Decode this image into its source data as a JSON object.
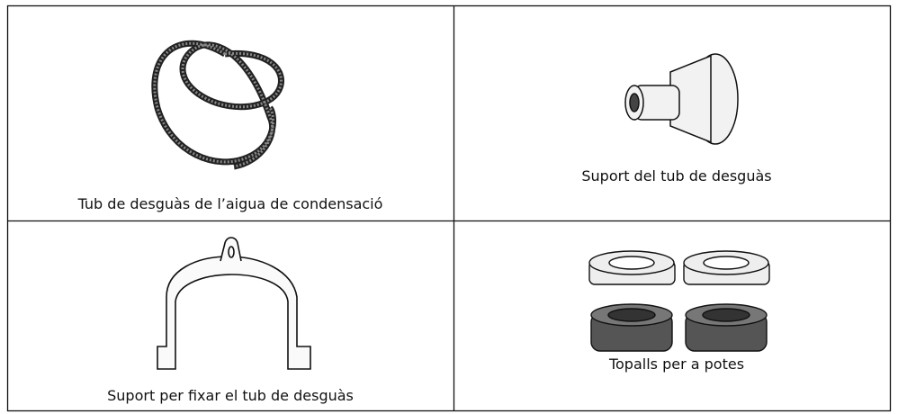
{
  "table": {
    "cells": [
      {
        "caption": "Tub de desguàs de l’aigua de condensació"
      },
      {
        "caption": "Suport del tub de desguàs"
      },
      {
        "caption": "Suport per fixar el tub de desguàs"
      },
      {
        "caption": "Topalls per a potes"
      }
    ]
  }
}
